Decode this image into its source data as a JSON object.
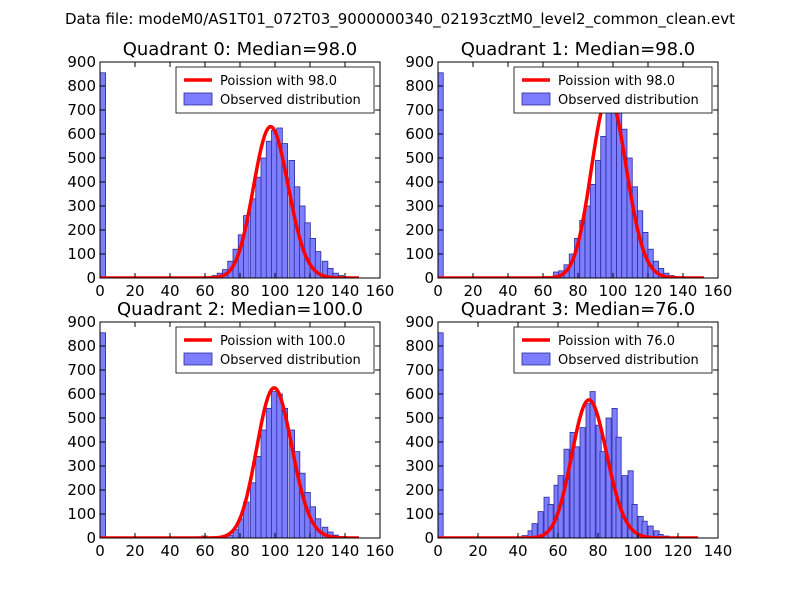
{
  "figure_title": "Data file: modeM0/AS1T01_072T03_9000000340_02193cztM0_level2_common_clean.evt",
  "colors": {
    "hist_fill": "#7d7dff",
    "hist_edge": "#2b2b9a",
    "poisson": "#ff0000"
  },
  "chart_data": [
    {
      "type": "bar",
      "title": "Quadrant 0: Median=98.0",
      "xlim": [
        0,
        160
      ],
      "ylim": [
        0,
        900
      ],
      "xticks": [
        0,
        20,
        40,
        60,
        80,
        100,
        120,
        140,
        160
      ],
      "yticks": [
        0,
        100,
        200,
        300,
        400,
        500,
        600,
        700,
        800,
        900
      ],
      "bin_width": 3.2,
      "bins": [
        [
          0,
          855
        ],
        [
          60,
          5
        ],
        [
          64,
          10
        ],
        [
          67,
          20
        ],
        [
          70,
          35
        ],
        [
          73,
          70
        ],
        [
          76,
          120
        ],
        [
          79,
          180
        ],
        [
          82,
          260
        ],
        [
          86,
          330
        ],
        [
          89,
          420
        ],
        [
          92,
          500
        ],
        [
          95,
          570
        ],
        [
          98,
          615
        ],
        [
          101,
          625
        ],
        [
          104,
          560
        ],
        [
          108,
          490
        ],
        [
          111,
          380
        ],
        [
          114,
          300
        ],
        [
          117,
          230
        ],
        [
          120,
          165
        ],
        [
          123,
          110
        ],
        [
          127,
          70
        ],
        [
          130,
          40
        ],
        [
          133,
          20
        ],
        [
          136,
          10
        ],
        [
          140,
          5
        ]
      ],
      "poisson_label": "Poission with 98.0",
      "observed_label": "Observed distribution",
      "poisson_mean": 98.0,
      "poisson_peak": 630,
      "poisson_range": [
        0,
        148
      ]
    },
    {
      "type": "bar",
      "title": "Quadrant 1: Median=98.0",
      "xlim": [
        0,
        160
      ],
      "ylim": [
        0,
        900
      ],
      "xticks": [
        0,
        20,
        40,
        60,
        80,
        100,
        120,
        140,
        160
      ],
      "yticks": [
        0,
        100,
        200,
        300,
        400,
        500,
        600,
        700,
        800,
        900
      ],
      "bin_width": 3.0,
      "bins": [
        [
          0,
          855
        ],
        [
          66,
          25
        ],
        [
          69,
          30
        ],
        [
          72,
          55
        ],
        [
          75,
          100
        ],
        [
          78,
          165
        ],
        [
          81,
          240
        ],
        [
          84,
          300
        ],
        [
          87,
          390
        ],
        [
          90,
          490
        ],
        [
          93,
          590
        ],
        [
          96,
          700
        ],
        [
          99,
          750
        ],
        [
          102,
          720
        ],
        [
          105,
          620
        ],
        [
          108,
          500
        ],
        [
          111,
          380
        ],
        [
          114,
          280
        ],
        [
          117,
          190
        ],
        [
          120,
          120
        ],
        [
          123,
          70
        ],
        [
          126,
          40
        ],
        [
          129,
          20
        ],
        [
          132,
          10
        ]
      ],
      "poisson_label": "Poission with 98.0",
      "observed_label": "Observed distribution",
      "poisson_mean": 98.0,
      "poisson_peak": 760,
      "poisson_range": [
        0,
        152
      ]
    },
    {
      "type": "bar",
      "title": "Quadrant 2: Median=100.0",
      "xlim": [
        0,
        160
      ],
      "ylim": [
        0,
        900
      ],
      "xticks": [
        0,
        20,
        40,
        60,
        80,
        100,
        120,
        140,
        160
      ],
      "yticks": [
        0,
        100,
        200,
        300,
        400,
        500,
        600,
        700,
        800,
        900
      ],
      "bin_width": 3.2,
      "bins": [
        [
          0,
          855
        ],
        [
          54,
          5
        ],
        [
          58,
          8
        ],
        [
          73,
          10
        ],
        [
          76,
          35
        ],
        [
          79,
          80
        ],
        [
          82,
          150
        ],
        [
          86,
          230
        ],
        [
          89,
          340
        ],
        [
          92,
          450
        ],
        [
          95,
          540
        ],
        [
          98,
          610
        ],
        [
          101,
          600
        ],
        [
          104,
          540
        ],
        [
          108,
          450
        ],
        [
          111,
          360
        ],
        [
          114,
          270
        ],
        [
          117,
          190
        ],
        [
          120,
          130
        ],
        [
          123,
          80
        ],
        [
          127,
          45
        ],
        [
          130,
          25
        ],
        [
          133,
          12
        ],
        [
          136,
          5
        ]
      ],
      "poisson_label": "Poission with 100.0",
      "observed_label": "Observed distribution",
      "poisson_mean": 100.0,
      "poisson_peak": 625,
      "poisson_range": [
        0,
        148
      ]
    },
    {
      "type": "bar",
      "title": "Quadrant 3: Median=76.0",
      "xlim": [
        0,
        140
      ],
      "ylim": [
        0,
        900
      ],
      "xticks": [
        0,
        20,
        40,
        60,
        80,
        100,
        120,
        140
      ],
      "yticks": [
        0,
        100,
        200,
        300,
        400,
        500,
        600,
        700,
        800,
        900
      ],
      "bin_width": 2.6,
      "bins": [
        [
          0,
          855
        ],
        [
          42,
          10
        ],
        [
          45,
          30
        ],
        [
          47,
          60
        ],
        [
          50,
          110
        ],
        [
          53,
          170
        ],
        [
          55,
          140
        ],
        [
          58,
          220
        ],
        [
          60,
          260
        ],
        [
          63,
          370
        ],
        [
          66,
          440
        ],
        [
          68,
          380
        ],
        [
          71,
          460
        ],
        [
          74,
          560
        ],
        [
          76,
          610
        ],
        [
          79,
          470
        ],
        [
          81,
          360
        ],
        [
          84,
          500
        ],
        [
          87,
          540
        ],
        [
          89,
          420
        ],
        [
          92,
          260
        ],
        [
          95,
          280
        ],
        [
          97,
          140
        ],
        [
          100,
          90
        ],
        [
          102,
          70
        ],
        [
          105,
          50
        ],
        [
          108,
          30
        ],
        [
          110,
          15
        ],
        [
          113,
          8
        ]
      ],
      "poisson_label": "Poission with 76.0",
      "observed_label": "Observed distribution",
      "poisson_mean": 76.0,
      "poisson_peak": 575,
      "poisson_range": [
        0,
        130
      ]
    }
  ]
}
